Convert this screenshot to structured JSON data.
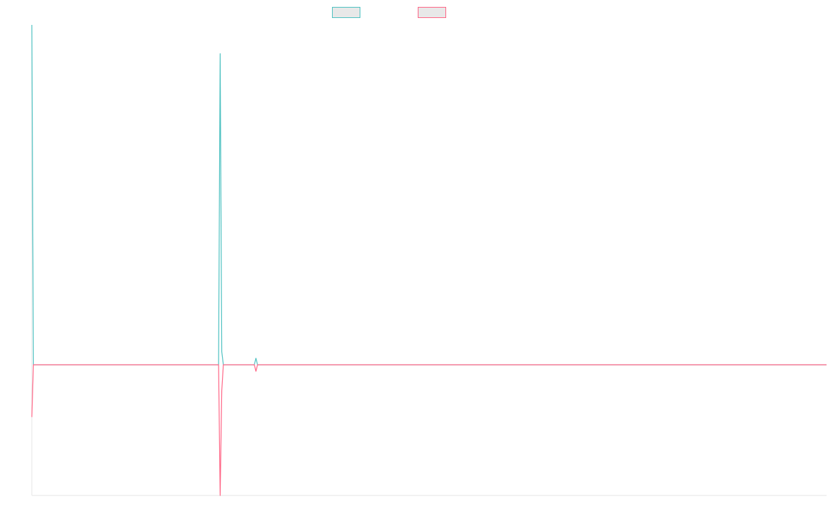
{
  "chart_data": {
    "type": "line",
    "title": "",
    "xlabel": "",
    "ylabel": "",
    "x_range": [
      0,
      100
    ],
    "ylim": [
      -1,
      2.6
    ],
    "grid": false,
    "legend": "top-center",
    "series": [
      {
        "color": "#4bc0c0",
        "points": [
          [
            0,
            2.6
          ],
          [
            0.2,
            0
          ],
          [
            23.5,
            0
          ],
          [
            23.7,
            2.38
          ],
          [
            23.9,
            0.1
          ],
          [
            24.1,
            0
          ],
          [
            28,
            0
          ],
          [
            28.2,
            0.05
          ],
          [
            28.4,
            0
          ],
          [
            100,
            0
          ]
        ]
      },
      {
        "color": "#ff6384",
        "points": [
          [
            0,
            -0.4
          ],
          [
            0.2,
            0
          ],
          [
            23.5,
            0
          ],
          [
            23.7,
            -1.0
          ],
          [
            23.9,
            -0.2
          ],
          [
            24.1,
            0
          ],
          [
            28,
            0
          ],
          [
            28.2,
            -0.05
          ],
          [
            28.4,
            0
          ],
          [
            100,
            0
          ]
        ]
      }
    ]
  }
}
